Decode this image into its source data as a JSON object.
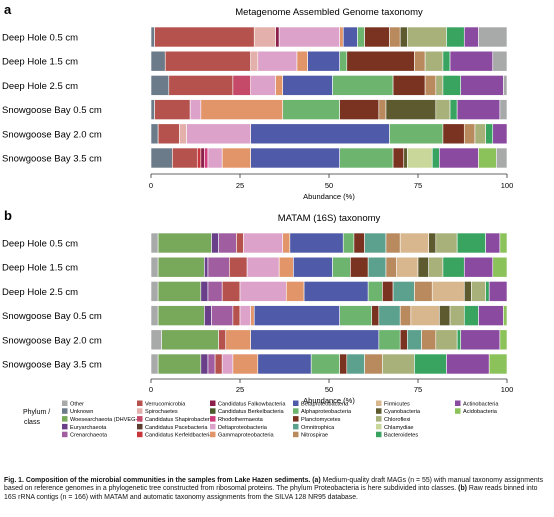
{
  "panels": [
    {
      "label": "a",
      "title": "Metagenome Assembled Genome taxonomy",
      "xlabel": "Abundance (%)",
      "ticks": [
        "0",
        "25",
        "50",
        "75",
        "100"
      ]
    },
    {
      "label": "b",
      "title": "MATAM (16S) taxonomy",
      "xlabel": "Abundance (%)",
      "ticks": [
        "0",
        "25",
        "50",
        "75",
        "100"
      ]
    }
  ],
  "legend": {
    "title_line1": "Phylum /",
    "title_line2": "class",
    "items": [
      {
        "name": "Other",
        "color": "#a7aaa9"
      },
      {
        "name": "Unknown",
        "color": "#6b7b8a"
      },
      {
        "name": "Woesearchaeota (DHVEG-6)",
        "color": "#78a85a"
      },
      {
        "name": "Euryarchaeota",
        "color": "#6a3f8a"
      },
      {
        "name": "Crenarchaeota",
        "color": "#a05ea1"
      },
      {
        "name": "Verrucomicrobia",
        "color": "#b5524d"
      },
      {
        "name": "Spirochaetes",
        "color": "#e4b0ab"
      },
      {
        "name": "Candidatus Shapirobacteria",
        "color": "#c54a6a"
      },
      {
        "name": "Candidatus Pacebacteria",
        "color": "#5a3d2c"
      },
      {
        "name": "Candidatus Kerfeldbacteria",
        "color": "#c8353a"
      },
      {
        "name": "Candidatus Falkowbacteria",
        "color": "#8b1f4a"
      },
      {
        "name": "Candidatus Berkelbacteria",
        "color": "#4a5a2a"
      },
      {
        "name": "Rhodothermaeota",
        "color": "#ce3d7a"
      },
      {
        "name": "Deltaproteobacteria",
        "color": "#dca2c9"
      },
      {
        "name": "Gammaproteobacteria",
        "color": "#e3956a"
      },
      {
        "name": "Betaproteobacteria",
        "color": "#4f5ba8"
      },
      {
        "name": "Alphaproteobacteria",
        "color": "#6db56f"
      },
      {
        "name": "Planctomycetes",
        "color": "#7a3320"
      },
      {
        "name": "Omnitrophica",
        "color": "#5ca08e"
      },
      {
        "name": "Nitrospirae",
        "color": "#b88a5e"
      },
      {
        "name": "Firmicutes",
        "color": "#d8b78e"
      },
      {
        "name": "Cyanobacteria",
        "color": "#5c5a2e"
      },
      {
        "name": "Chloroflexi",
        "color": "#a7b179"
      },
      {
        "name": "Chlamydiae",
        "color": "#c9d79a"
      },
      {
        "name": "Bacteroidetes",
        "color": "#39a460"
      },
      {
        "name": "Actinobacteria",
        "color": "#8a4aa0"
      },
      {
        "name": "Acidobacteria",
        "color": "#8cc25a"
      }
    ]
  },
  "chart_data": [
    {
      "type": "bar",
      "orientation": "horizontal",
      "stacked": true,
      "title": "Metagenome Assembled Genome taxonomy",
      "xlabel": "Abundance (%)",
      "xlim": [
        0,
        100
      ],
      "categories": [
        "Deep Hole 0.5 cm",
        "Deep Hole 1.5 cm",
        "Deep Hole 2.5 cm",
        "Snowgoose Bay 0.5 cm",
        "Snowgoose Bay 2.0 cm",
        "Snowgoose Bay 3.5 cm"
      ],
      "series": [
        {
          "name": "Unknown",
          "color": "#6b7b8a",
          "values": [
            1,
            4,
            5,
            1,
            2,
            6
          ]
        },
        {
          "name": "Verrucomicrobia",
          "color": "#b5524d",
          "values": [
            28,
            24,
            18,
            10,
            6,
            7
          ]
        },
        {
          "name": "Spirochaetes",
          "color": "#e4b0ab",
          "values": [
            6,
            2,
            0,
            0,
            2,
            0
          ]
        },
        {
          "name": "Candidatus Shapirobacteria",
          "color": "#c54a6a",
          "values": [
            0,
            0,
            5,
            0,
            0,
            0
          ]
        },
        {
          "name": "Candidatus Pacebacteria",
          "color": "#5a3d2c",
          "values": [
            0,
            0,
            0,
            0,
            0,
            0
          ]
        },
        {
          "name": "Candidatus Kerfeldbacteria",
          "color": "#c8353a",
          "values": [
            0,
            0,
            0,
            0,
            0,
            1
          ]
        },
        {
          "name": "Candidatus Falkowbacteria",
          "color": "#8b1f4a",
          "values": [
            1,
            0,
            0,
            0,
            0,
            1
          ]
        },
        {
          "name": "Candidatus Berkelbacteria",
          "color": "#4a5a2a",
          "values": [
            0,
            0,
            0,
            0,
            0,
            0
          ]
        },
        {
          "name": "Rhodothermaeota",
          "color": "#ce3d7a",
          "values": [
            0,
            0,
            0,
            0,
            0,
            1
          ]
        },
        {
          "name": "Deltaproteobacteria",
          "color": "#dca2c9",
          "values": [
            17,
            11,
            7,
            3,
            18,
            4
          ]
        },
        {
          "name": "Gammaproteobacteria",
          "color": "#e3956a",
          "values": [
            1,
            3,
            2,
            23,
            0,
            8
          ]
        },
        {
          "name": "Betaproteobacteria",
          "color": "#4f5ba8",
          "values": [
            4,
            9,
            14,
            0,
            39,
            25
          ]
        },
        {
          "name": "Alphaproteobacteria",
          "color": "#6db56f",
          "values": [
            2,
            2,
            17,
            16,
            15,
            15
          ]
        },
        {
          "name": "Planctomycetes",
          "color": "#7a3320",
          "values": [
            7,
            19,
            9,
            11,
            6,
            3
          ]
        },
        {
          "name": "Omnitrophica",
          "color": "#5ca08e",
          "values": [
            0,
            0,
            0,
            0,
            0,
            0
          ]
        },
        {
          "name": "Nitrospirae",
          "color": "#b88a5e",
          "values": [
            3,
            3,
            3,
            2,
            3,
            0
          ]
        },
        {
          "name": "Firmicutes",
          "color": "#d8b78e",
          "values": [
            0,
            0,
            0,
            0,
            0,
            0
          ]
        },
        {
          "name": "Cyanobacteria",
          "color": "#5c5a2e",
          "values": [
            2,
            0,
            0,
            14,
            0,
            1
          ]
        },
        {
          "name": "Chloroflexi",
          "color": "#a7b179",
          "values": [
            11,
            5,
            2,
            4,
            3,
            0
          ]
        },
        {
          "name": "Chlamydiae",
          "color": "#c9d79a",
          "values": [
            0,
            0,
            0,
            0,
            0,
            7
          ]
        },
        {
          "name": "Bacteroidetes",
          "color": "#39a460",
          "values": [
            5,
            2,
            5,
            2,
            2,
            2
          ]
        },
        {
          "name": "Actinobacteria",
          "color": "#8a4aa0",
          "values": [
            4,
            12,
            12,
            12,
            4,
            11
          ]
        },
        {
          "name": "Acidobacteria",
          "color": "#8cc25a",
          "values": [
            0,
            0,
            0,
            0,
            0,
            5
          ]
        },
        {
          "name": "Other",
          "color": "#a7aaa9",
          "values": [
            8,
            4,
            1,
            2,
            0,
            3
          ]
        }
      ]
    },
    {
      "type": "bar",
      "orientation": "horizontal",
      "stacked": true,
      "title": "MATAM (16S) taxonomy",
      "xlabel": "Abundance (%)",
      "xlim": [
        0,
        100
      ],
      "categories": [
        "Deep Hole 0.5 cm",
        "Deep Hole 1.5 cm",
        "Deep Hole 2.5 cm",
        "Snowgoose Bay 0.5 cm",
        "Snowgoose Bay 2.0 cm",
        "Snowgoose Bay 3.5 cm"
      ],
      "series": [
        {
          "name": "Other",
          "color": "#a7aaa9",
          "values": [
            2,
            2,
            2,
            2,
            3,
            2
          ]
        },
        {
          "name": "Woesearchaeota (DHVEG-6)",
          "color": "#78a85a",
          "values": [
            15,
            13,
            12,
            13,
            16,
            12
          ]
        },
        {
          "name": "Euryarchaeota",
          "color": "#6a3f8a",
          "values": [
            2,
            1,
            2,
            2,
            0,
            2
          ]
        },
        {
          "name": "Crenarchaeota",
          "color": "#a05ea1",
          "values": [
            5,
            6,
            4,
            6,
            0,
            2
          ]
        },
        {
          "name": "Verrucomicrobia",
          "color": "#b5524d",
          "values": [
            2,
            5,
            5,
            2,
            2,
            2
          ]
        },
        {
          "name": "Deltaproteobacteria",
          "color": "#dca2c9",
          "values": [
            11,
            9,
            13,
            3,
            0,
            3
          ]
        },
        {
          "name": "Gammaproteobacteria",
          "color": "#e3956a",
          "values": [
            2,
            4,
            5,
            1,
            7,
            7
          ]
        },
        {
          "name": "Betaproteobacteria",
          "color": "#4f5ba8",
          "values": [
            15,
            11,
            18,
            24,
            36,
            15
          ]
        },
        {
          "name": "Alphaproteobacteria",
          "color": "#6db56f",
          "values": [
            3,
            5,
            4,
            9,
            6,
            8
          ]
        },
        {
          "name": "Planctomycetes",
          "color": "#7a3320",
          "values": [
            3,
            5,
            3,
            2,
            2,
            2
          ]
        },
        {
          "name": "Omnitrophica",
          "color": "#5ca08e",
          "values": [
            6,
            5,
            6,
            6,
            4,
            5
          ]
        },
        {
          "name": "Nitrospirae",
          "color": "#b88a5e",
          "values": [
            4,
            3,
            5,
            3,
            4,
            5
          ]
        },
        {
          "name": "Firmicutes",
          "color": "#d8b78e",
          "values": [
            8,
            6,
            9,
            8,
            0,
            0
          ]
        },
        {
          "name": "Cyanobacteria",
          "color": "#5c5a2e",
          "values": [
            2,
            3,
            2,
            3,
            0,
            0
          ]
        },
        {
          "name": "Chloroflexi",
          "color": "#a7b179",
          "values": [
            6,
            4,
            4,
            4,
            6,
            9
          ]
        },
        {
          "name": "Bacteroidetes",
          "color": "#39a460",
          "values": [
            8,
            6,
            1,
            4,
            1,
            9
          ]
        },
        {
          "name": "Actinobacteria",
          "color": "#8a4aa0",
          "values": [
            4,
            8,
            5,
            7,
            11,
            12
          ]
        },
        {
          "name": "Acidobacteria",
          "color": "#8cc25a",
          "values": [
            2,
            4,
            0,
            1,
            2,
            5
          ]
        }
      ]
    }
  ],
  "caption": {
    "fig_label": "Fig. 1.",
    "lead": "Composition of the microbial communities in the samples from Lake Hazen sediments.",
    "panel_a_label": "(a)",
    "panel_a_text": "Medium-quality draft MAGs (n = 55) with manual taxonomy assignments based on reference genomes in a phylogenetic tree constructed from ribosomal proteins. The phylum Proteobacteria is here subdivided into classes.",
    "panel_b_label": "(b)",
    "panel_b_text": "Raw reads binned into 16S rRNA contigs (n = 166) with MATAM and automatic taxonomy assignments from the SILVA 128 NR95 database."
  }
}
